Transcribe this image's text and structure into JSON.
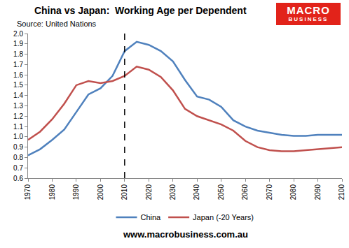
{
  "chart_data": {
    "type": "line",
    "title": "China vs Japan:  Working Age per Dependent",
    "subtitle": "Source: United Nations",
    "footer": "www.macrobusiness.com.au",
    "logo": [
      "MACRO",
      "BUSINESS"
    ],
    "x": [
      1970,
      1975,
      1980,
      1985,
      1990,
      1995,
      2000,
      2005,
      2010,
      2015,
      2020,
      2025,
      2030,
      2035,
      2040,
      2045,
      2050,
      2055,
      2060,
      2065,
      2070,
      2075,
      2080,
      2085,
      2090,
      2095,
      2100
    ],
    "series": [
      {
        "name": "China",
        "color": "#4f81bd",
        "values": [
          0.82,
          0.88,
          0.97,
          1.07,
          1.24,
          1.41,
          1.47,
          1.59,
          1.83,
          1.92,
          1.89,
          1.83,
          1.73,
          1.55,
          1.39,
          1.36,
          1.29,
          1.16,
          1.1,
          1.06,
          1.04,
          1.02,
          1.01,
          1.01,
          1.02,
          1.02,
          1.02
        ]
      },
      {
        "name": "Japan (-20 Years)",
        "color": "#c0504d",
        "values": [
          0.97,
          1.05,
          1.17,
          1.32,
          1.5,
          1.54,
          1.52,
          1.54,
          1.59,
          1.68,
          1.65,
          1.58,
          1.45,
          1.27,
          1.2,
          1.16,
          1.12,
          1.06,
          0.96,
          0.9,
          0.87,
          0.86,
          0.86,
          0.87,
          0.88,
          0.89,
          0.9
        ]
      }
    ],
    "xlim": [
      1970,
      2100
    ],
    "xticks": [
      1970,
      1980,
      1990,
      2000,
      2010,
      2020,
      2030,
      2040,
      2050,
      2060,
      2070,
      2080,
      2090,
      2100
    ],
    "ylim": [
      0.6,
      2
    ],
    "yticks": [
      0.6,
      0.7,
      0.8,
      0.9,
      {
        "value": 1,
        "label": "1.0"
      },
      1.1,
      1.2,
      1.3,
      1.4,
      1.5,
      1.6,
      1.7,
      1.8,
      1.9,
      {
        "value": 2,
        "label": "2.0"
      }
    ],
    "reference_line": {
      "x": 2010,
      "line_style": "dashed"
    },
    "grid": false,
    "legend": "bottom"
  }
}
